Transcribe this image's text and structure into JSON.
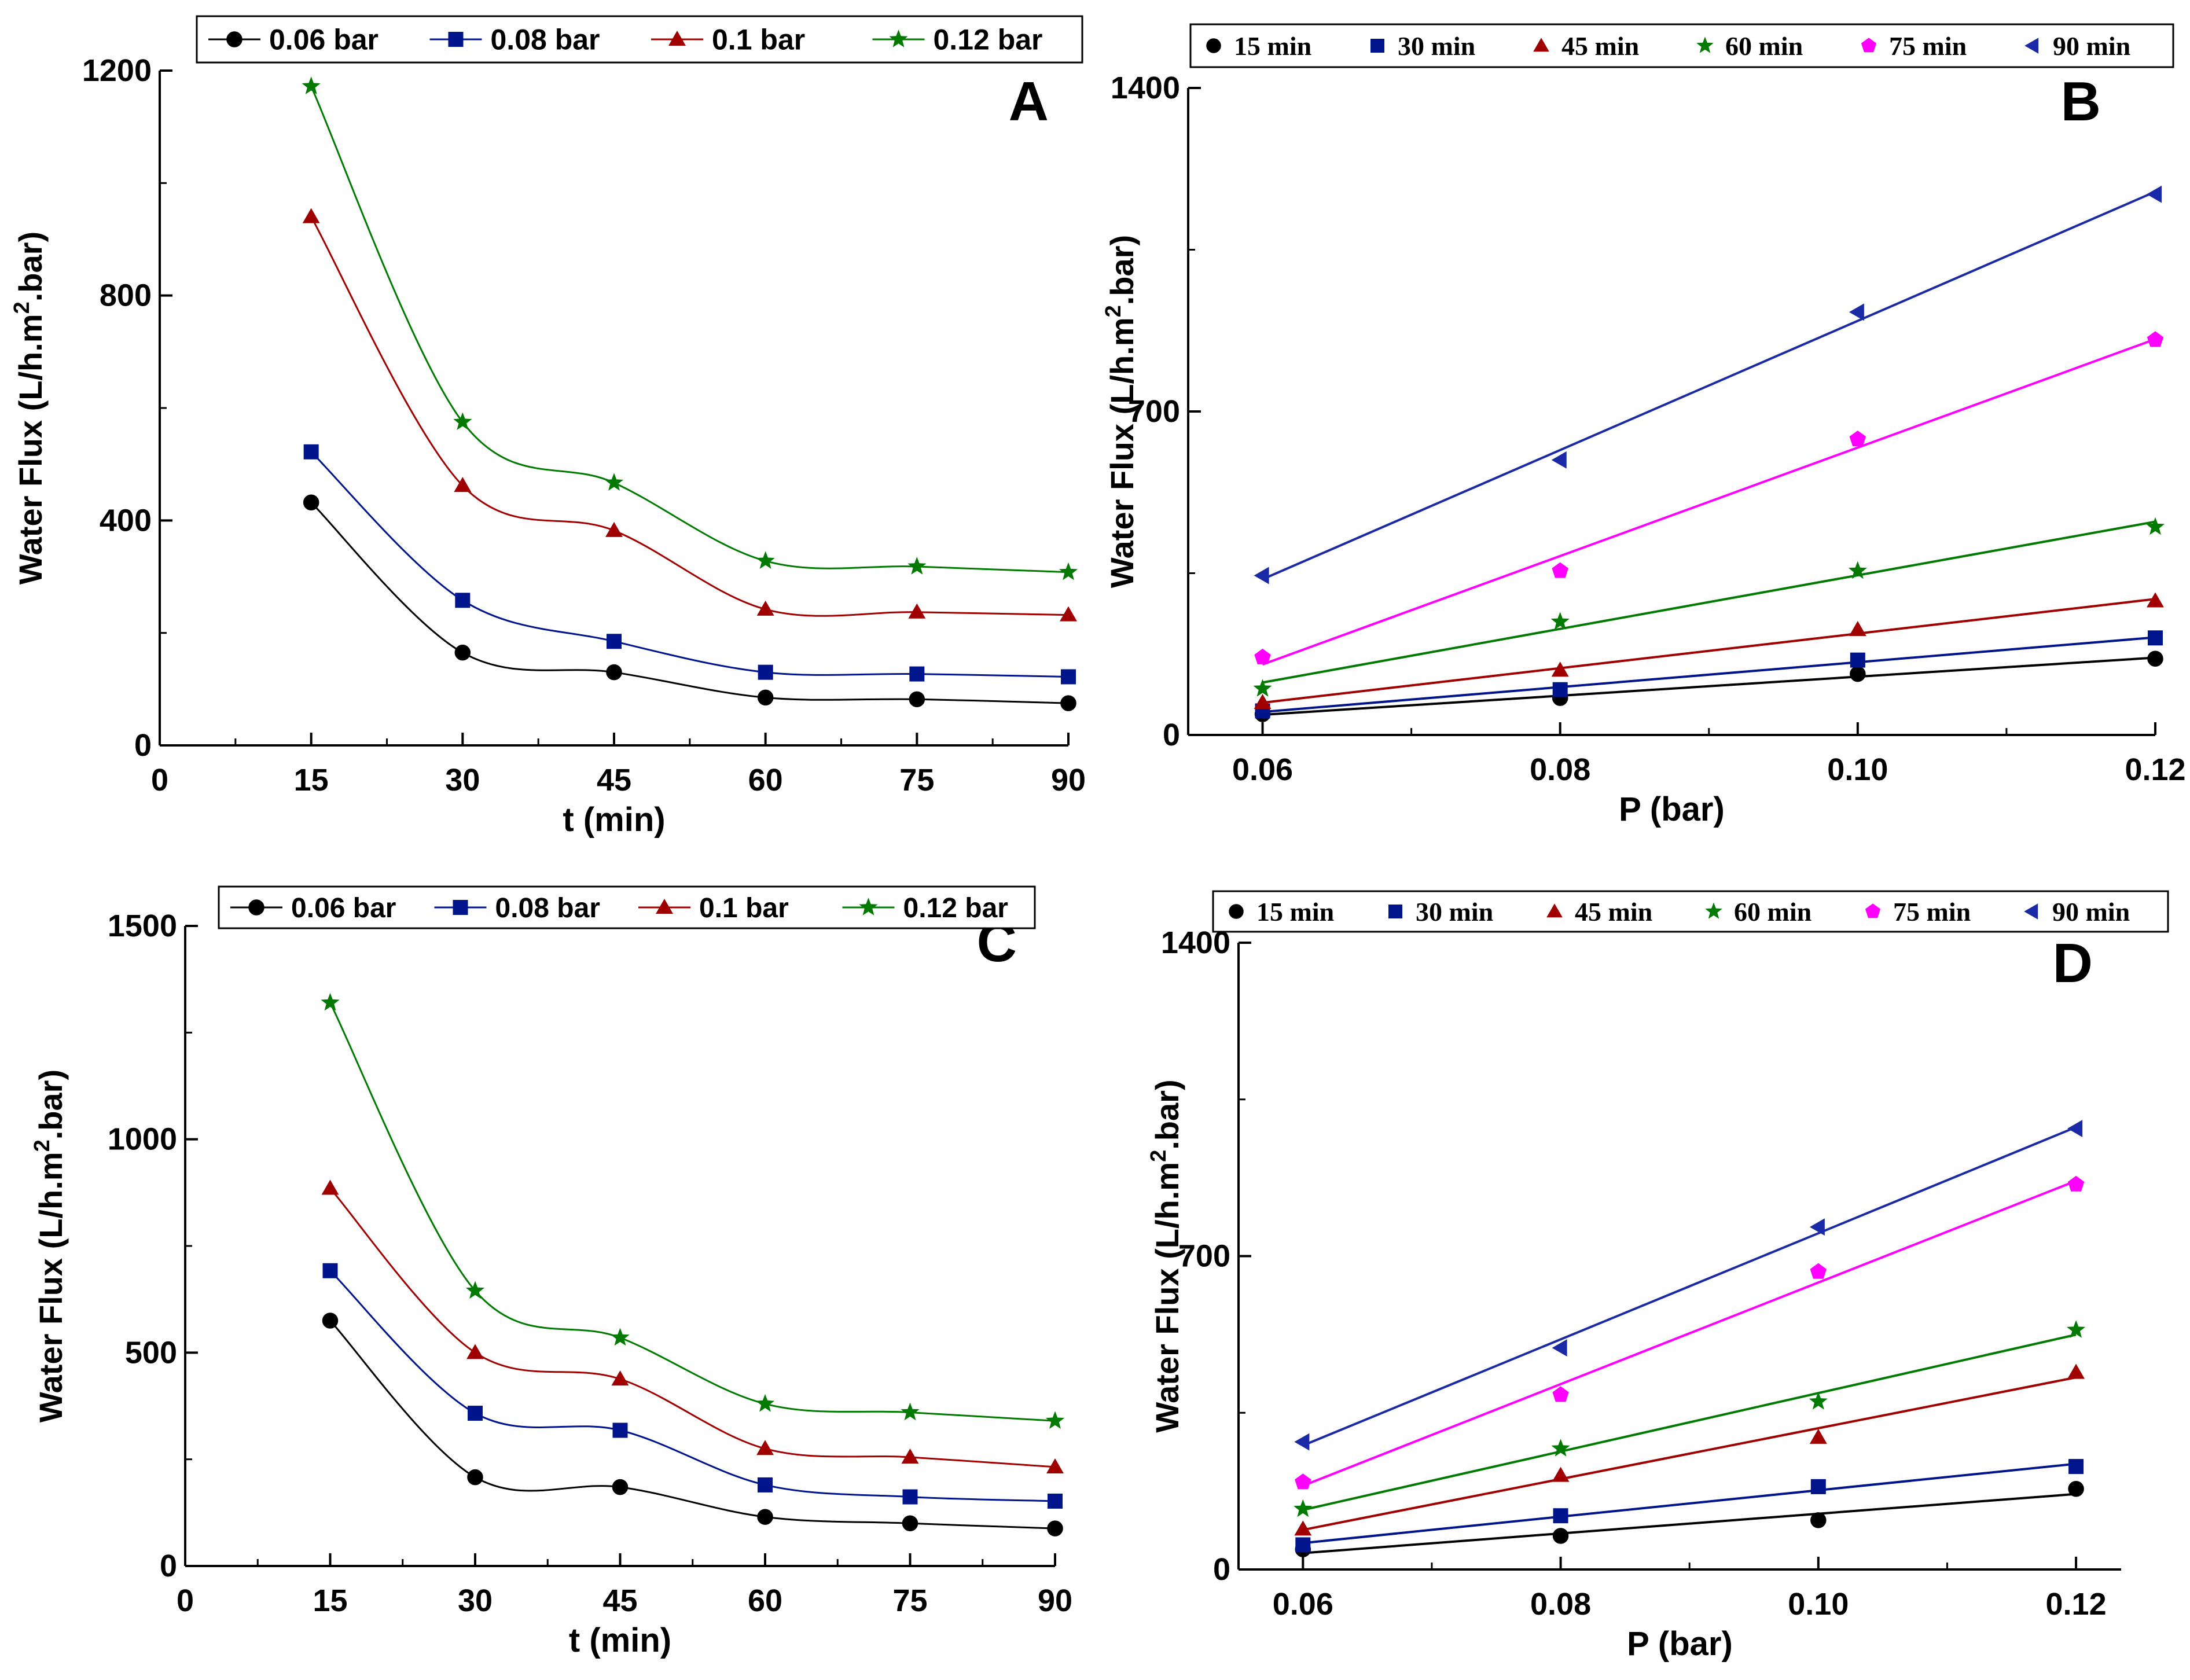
{
  "colors": {
    "black": "#000000",
    "navy": "#00148c",
    "darkred": "#a00000",
    "green": "#007a00",
    "magenta": "#ff00ff",
    "blue": "#1a2aa6"
  },
  "chart_data": [
    {
      "id": "A",
      "type": "line",
      "panel_label": "A",
      "xlabel": "t (min)",
      "ylabel_pre": "Water Flux (L/h.m",
      "ylabel_sup": "2",
      "ylabel_post": ".bar)",
      "xlim": [
        0,
        90
      ],
      "ylim": [
        0,
        1200
      ],
      "xticks": [
        0,
        15,
        30,
        45,
        60,
        75,
        90
      ],
      "yticks": [
        0,
        400,
        800,
        1200
      ],
      "x": [
        15,
        30,
        45,
        60,
        75,
        90
      ],
      "legend_position": "top",
      "series": [
        {
          "name": "0.06 bar",
          "marker": "sphere",
          "color": "#000000",
          "values": [
            432,
            165,
            130,
            85,
            82,
            75
          ]
        },
        {
          "name": "0.08 bar",
          "marker": "square",
          "color": "#00148c",
          "values": [
            522,
            258,
            185,
            130,
            127,
            122
          ]
        },
        {
          "name": "0.1 bar",
          "marker": "triangle",
          "color": "#a00000",
          "values": [
            940,
            462,
            382,
            242,
            237,
            232
          ]
        },
        {
          "name": "0.12 bar",
          "marker": "star",
          "color": "#007a00",
          "values": [
            1172,
            575,
            467,
            328,
            318,
            308
          ]
        }
      ]
    },
    {
      "id": "B",
      "type": "scatter",
      "panel_label": "B",
      "xlabel": "P (bar)",
      "ylabel_pre": "Water Flux (L/h.m",
      "ylabel_sup": "2",
      "ylabel_post": ".bar)",
      "xlim": [
        0.055,
        0.12
      ],
      "ylim": [
        0,
        1400
      ],
      "xticks": [
        0.06,
        0.08,
        0.1,
        0.12
      ],
      "xtick_labels": [
        "0.06",
        "0.08",
        "0.10",
        "0.12"
      ],
      "yticks": [
        0,
        700,
        1400
      ],
      "x": [
        0.06,
        0.08,
        0.1,
        0.12
      ],
      "fit": "linear",
      "legend_position": "top",
      "series": [
        {
          "name": "15 min",
          "marker": "sphere",
          "color": "#000000",
          "values": [
            45,
            80,
            132,
            165
          ]
        },
        {
          "name": "30 min",
          "marker": "square",
          "color": "#00148c",
          "values": [
            52,
            98,
            162,
            210
          ]
        },
        {
          "name": "45 min",
          "marker": "triangle",
          "color": "#a00000",
          "values": [
            70,
            140,
            228,
            290
          ]
        },
        {
          "name": "60 min",
          "marker": "star",
          "color": "#007a00",
          "values": [
            100,
            245,
            355,
            450
          ]
        },
        {
          "name": "75 min",
          "marker": "pentagon",
          "color": "#ff00ff",
          "values": [
            168,
            355,
            640,
            855
          ]
        },
        {
          "name": "90 min",
          "marker": "left-triangle",
          "color": "#1a2aa6",
          "values": [
            345,
            595,
            915,
            1170
          ]
        }
      ]
    },
    {
      "id": "C",
      "type": "line",
      "panel_label": "C",
      "xlabel": "t (min)",
      "ylabel_pre": "Water Flux (L/h.m",
      "ylabel_sup": "2",
      "ylabel_post": ".bar)",
      "xlim": [
        0,
        90
      ],
      "ylim": [
        0,
        1500
      ],
      "xticks": [
        0,
        15,
        30,
        45,
        60,
        75,
        90
      ],
      "yticks": [
        0,
        500,
        1000,
        1500
      ],
      "x": [
        15,
        30,
        45,
        60,
        75,
        90
      ],
      "legend_position": "top",
      "series": [
        {
          "name": "0.06 bar",
          "marker": "sphere",
          "color": "#000000",
          "values": [
            575,
            208,
            185,
            115,
            100,
            88
          ]
        },
        {
          "name": "0.08 bar",
          "marker": "square",
          "color": "#00148c",
          "values": [
            692,
            358,
            318,
            190,
            162,
            152
          ]
        },
        {
          "name": "0.1 bar",
          "marker": "triangle",
          "color": "#a00000",
          "values": [
            885,
            500,
            438,
            275,
            255,
            232
          ]
        },
        {
          "name": "0.12 bar",
          "marker": "star",
          "color": "#007a00",
          "values": [
            1320,
            645,
            535,
            380,
            360,
            340
          ]
        }
      ]
    },
    {
      "id": "D",
      "type": "scatter",
      "panel_label": "D",
      "xlabel": "P (bar)",
      "ylabel_pre": "Water Flux (L/h.m",
      "ylabel_sup": "2",
      "ylabel_post": ".bar)",
      "xlim": [
        0.055,
        0.1235
      ],
      "ylim": [
        0,
        1400
      ],
      "xticks": [
        0.06,
        0.08,
        0.1,
        0.12
      ],
      "xtick_labels": [
        "0.06",
        "0.08",
        "0.10",
        "0.12"
      ],
      "yticks": [
        0,
        700,
        1400
      ],
      "x": [
        0.06,
        0.08,
        0.1,
        0.12
      ],
      "fit": "linear",
      "legend_position": "top",
      "series": [
        {
          "name": "15 min",
          "marker": "sphere",
          "color": "#000000",
          "values": [
            45,
            75,
            110,
            180
          ]
        },
        {
          "name": "30 min",
          "marker": "square",
          "color": "#00148c",
          "values": [
            55,
            120,
            185,
            230
          ]
        },
        {
          "name": "45 min",
          "marker": "triangle",
          "color": "#a00000",
          "values": [
            90,
            210,
            295,
            440
          ]
        },
        {
          "name": "60 min",
          "marker": "star",
          "color": "#007a00",
          "values": [
            135,
            270,
            375,
            535
          ]
        },
        {
          "name": "75 min",
          "marker": "pentagon",
          "color": "#ff00ff",
          "values": [
            195,
            390,
            665,
            860
          ]
        },
        {
          "name": "90 min",
          "marker": "left-triangle",
          "color": "#1a2aa6",
          "values": [
            285,
            495,
            765,
            985
          ]
        }
      ]
    }
  ]
}
